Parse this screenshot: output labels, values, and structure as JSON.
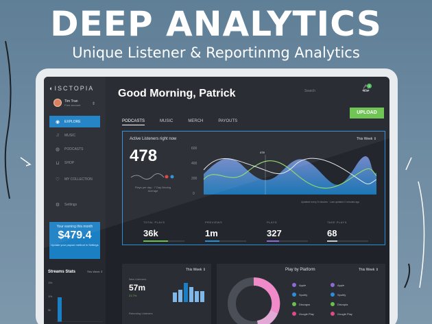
{
  "banner": {
    "headline": "DEEP ANALYTICS",
    "subline": "Unique Listener & Reportinmg Analytics"
  },
  "sidebar": {
    "logo": "ISCTOPIA",
    "user": {
      "name": "Tim Tran",
      "plan": "Free account"
    },
    "items": [
      {
        "label": "EXPLORE",
        "icon": "compass-icon",
        "active": true
      },
      {
        "label": "MUSIC",
        "icon": "music-note-icon",
        "active": false
      },
      {
        "label": "PODCASTS",
        "icon": "microphone-icon",
        "active": false
      },
      {
        "label": "SHOP",
        "icon": "cart-icon",
        "active": false
      },
      {
        "label": "MY COLLECTION",
        "icon": "heart-icon",
        "active": false
      },
      {
        "label": "Settings",
        "icon": "gear-icon",
        "active": false
      }
    ],
    "earning": {
      "title": "Your earning this month",
      "value": "$479.4",
      "note": "Update your payout method in Settings"
    },
    "streams": {
      "title": "Streams Stats",
      "period": "This Week",
      "ticks": [
        "15k",
        "10k",
        "5k"
      ],
      "level": 0.6
    }
  },
  "header": {
    "greeting": "Good Morning, Patrick",
    "search_placeholder": "Search",
    "notifications": "1",
    "upload_label": "UPLOAD"
  },
  "tabs": [
    "PODCASTS",
    "MUSIC",
    "MERCH",
    "PAYOUTS"
  ],
  "active_listeners": {
    "label": "Active Listeners right now",
    "period": "This Week",
    "value": "478",
    "sub": "Plays per day · 7 Day Moving Average",
    "chart_y_ticks": [
      "600",
      "400",
      "200",
      "0"
    ],
    "chart_marker": "478",
    "chart_footnote": "Updated every 5 minutes · Last updated 2 minutes ago"
  },
  "stats": [
    {
      "key": "TOTAL PLAYS",
      "value": "36k",
      "color": "#69c24c",
      "fill": 0.6
    },
    {
      "key": "PREVIEWS",
      "value": "1m",
      "color": "#2b8fd8",
      "fill": 0.35
    },
    {
      "key": "PLAYS",
      "value": "327",
      "color": "#8e6bd6",
      "fill": 0.3
    },
    {
      "key": "TAKE PLAYS",
      "value": "68",
      "color": "#c7ccd3",
      "fill": 0.25
    }
  ],
  "listeners_card": {
    "period": "This Week",
    "new_label": "New Listeners",
    "new_value": "57m",
    "delta": "21.7%",
    "returning_label": "Returning Listeners"
  },
  "platform_card": {
    "title": "Play by Platform",
    "period": "This Week",
    "legend_left": [
      "Apple",
      "Spotify",
      "Discogss",
      "Google Play"
    ],
    "legend_right": [
      "Apple",
      "Spotify",
      "Discopia",
      "Google Play"
    ],
    "colors": [
      "#8e6bd6",
      "#2b8fd8",
      "#69c24c",
      "#e04a8a"
    ]
  },
  "colors": {
    "accent": "#1b7fc4",
    "upload": "#69c24c",
    "highlight": "#2b8fd8"
  }
}
